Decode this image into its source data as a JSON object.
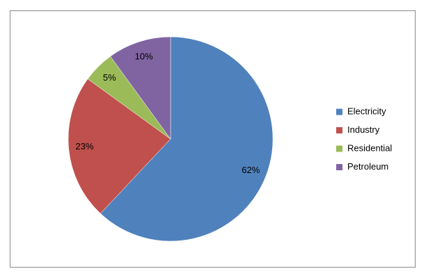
{
  "chart_data": {
    "type": "pie",
    "categories": [
      "Electricity",
      "Industry",
      "Residential",
      "Petroleum"
    ],
    "values": [
      62,
      23,
      5,
      10
    ],
    "value_labels": [
      "62%",
      "23%",
      "5%",
      "10%"
    ],
    "colors": [
      "#4f81bd",
      "#c0504d",
      "#9bbb59",
      "#8064a2"
    ],
    "legend": "right"
  }
}
